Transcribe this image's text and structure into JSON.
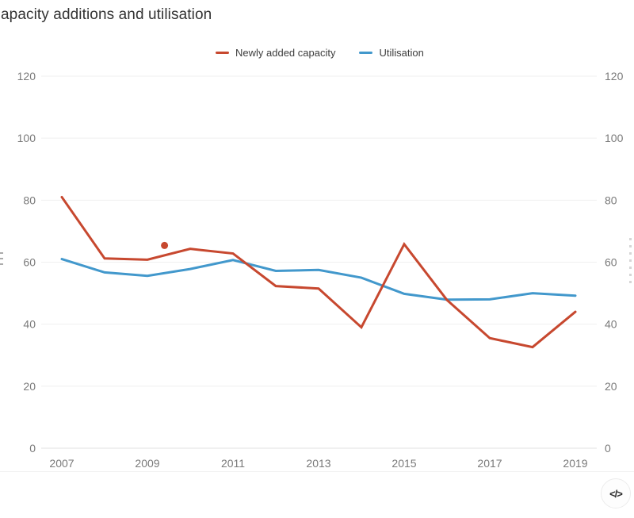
{
  "title": "apacity additions and utilisation",
  "chart_data": {
    "type": "line",
    "title": "apacity additions and utilisation",
    "x": [
      2007,
      2008,
      2009,
      2010,
      2011,
      2012,
      2013,
      2014,
      2015,
      2016,
      2017,
      2018,
      2019
    ],
    "series": [
      {
        "name": "Newly added capacity",
        "color": "#c7482f",
        "values": [
          81,
          61.2,
          60.8,
          64.3,
          62.8,
          52.3,
          51.5,
          39,
          65.8,
          47.8,
          35.5,
          32.6,
          44
        ]
      },
      {
        "name": "Utilisation",
        "color": "#4298cc",
        "values": [
          61,
          56.7,
          55.6,
          57.8,
          60.7,
          57.2,
          57.5,
          55,
          49.8,
          47.9,
          48,
          50,
          49.2
        ]
      }
    ],
    "point_marker": {
      "series": "Newly added capacity",
      "x": 2009.4,
      "y": 65.4
    },
    "xticks": [
      2007,
      2009,
      2011,
      2013,
      2015,
      2017,
      2019
    ],
    "yticks": [
      0,
      20,
      40,
      60,
      80,
      100,
      120
    ],
    "ylim": [
      0,
      120
    ],
    "grid": "horizontal",
    "gridline_color": "#efefef",
    "baseline_color": "#e2e2e2",
    "dual_y_axis": true,
    "legend_position": "top-center"
  },
  "embed_button": {
    "label": "</>"
  }
}
